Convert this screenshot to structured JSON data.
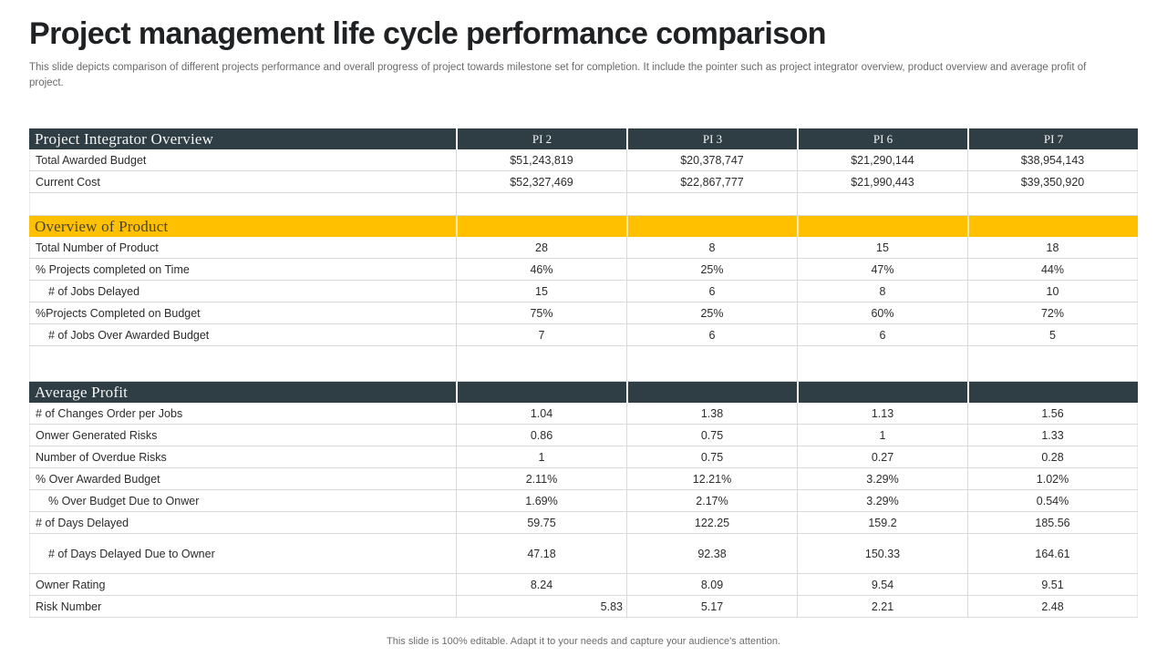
{
  "slide": {
    "title": "Project management life cycle performance comparison",
    "subtitle": "This slide depicts comparison of different projects performance and overall progress of project towards milestone set for completion. It include the pointer such as project integrator overview,  product overview and average profit  of project.",
    "footer": "This slide is 100% editable.  Adapt it to your needs and capture your audience's attention."
  },
  "colors": {
    "section_dark": "#2f3d45",
    "section_yellow": "#ffc000",
    "grid_line": "#d9d9d9",
    "title_text": "#1f2123",
    "muted_text": "#6a6a6a"
  },
  "table": {
    "columns": [
      "PI 2",
      "PI 3",
      "PI 6",
      "PI 7"
    ],
    "sections": [
      {
        "title": "Project Integrator Overview",
        "style": "dark",
        "show_columns": true,
        "rows": [
          {
            "label": "Total Awarded Budget",
            "values": [
              "$51,243,819",
              "$20,378,747",
              "$21,290,144",
              "$38,954,143"
            ]
          },
          {
            "label": "Current Cost",
            "values": [
              "$52,327,469",
              "$22,867,777",
              "$21,990,443",
              "$39,350,920"
            ]
          },
          {
            "label": "",
            "values": [
              "",
              "",
              "",
              ""
            ],
            "spacer": true
          }
        ]
      },
      {
        "title": "Overview of Product",
        "style": "yellow",
        "show_columns": false,
        "rows": [
          {
            "label": "Total Number of Product",
            "values": [
              "28",
              "8",
              "15",
              "18"
            ]
          },
          {
            "label": "% Projects completed  on Time",
            "values": [
              "46%",
              "25%",
              "47%",
              "44%"
            ]
          },
          {
            "label": "# of Jobs Delayed",
            "indent": true,
            "values": [
              "15",
              "6",
              "8",
              "10"
            ]
          },
          {
            "label": "%Projects Completed on Budget",
            "values": [
              "75%",
              "25%",
              "60%",
              "72%"
            ]
          },
          {
            "label": "# of Jobs Over Awarded Budget",
            "indent": true,
            "values": [
              "7",
              "6",
              "6",
              "5"
            ]
          },
          {
            "label": "",
            "values": [
              "",
              "",
              "",
              ""
            ],
            "spacer": true,
            "tall_spacer": true
          }
        ]
      },
      {
        "title": "Average Profit",
        "style": "dark",
        "show_columns": false,
        "rows": [
          {
            "label": "# of Changes Order per Jobs",
            "values": [
              "1.04",
              "1.38",
              "1.13",
              "1.56"
            ]
          },
          {
            "label": "Onwer Generated Risks",
            "values": [
              "0.86",
              "0.75",
              "1",
              "1.33"
            ]
          },
          {
            "label": "Number of Overdue Risks",
            "values": [
              "1",
              "0.75",
              "0.27",
              "0.28"
            ]
          },
          {
            "label": "% Over Awarded Budget",
            "values": [
              "2.11%",
              "12.21%",
              "3.29%",
              "1.02%"
            ]
          },
          {
            "label": "% Over Budget Due to Onwer",
            "indent": true,
            "values": [
              "1.69%",
              "2.17%",
              "3.29%",
              "0.54%"
            ]
          },
          {
            "label": "# of Days Delayed",
            "values": [
              "59.75",
              "122.25",
              "159.2",
              "185.56"
            ]
          },
          {
            "label": "# of Days Delayed Due to Owner",
            "indent": true,
            "tall": true,
            "values": [
              "47.18",
              "92.38",
              "150.33",
              "164.61"
            ]
          },
          {
            "label": "Owner Rating",
            "values": [
              "8.24",
              "8.09",
              "9.54",
              "9.51"
            ]
          },
          {
            "label": "Risk Number",
            "first_value_align": "right",
            "values": [
              "5.83",
              "5.17",
              "2.21",
              "2.48"
            ]
          }
        ]
      }
    ]
  }
}
